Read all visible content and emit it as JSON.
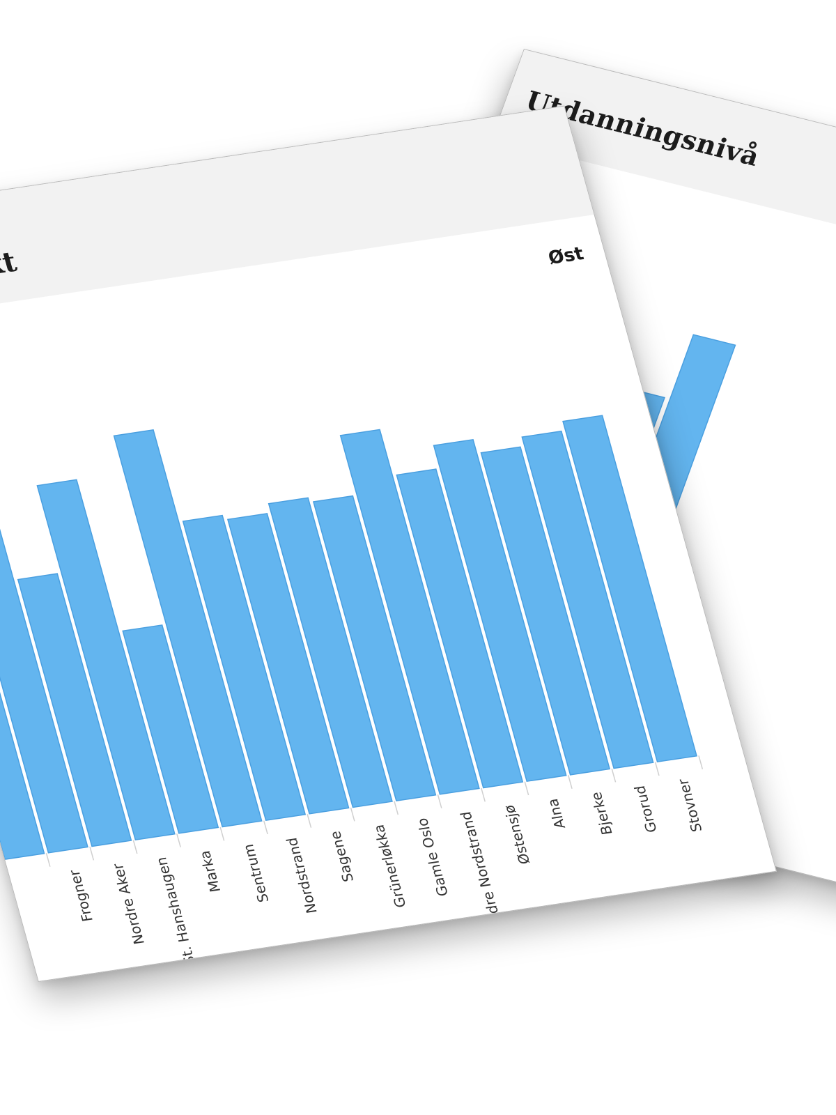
{
  "cards": {
    "income": {
      "title": "ntekt",
      "region_label": "Øst"
    },
    "education": {
      "title": "Utdanningsnivå"
    }
  },
  "colors": {
    "bar": "#63b5ef",
    "bar_edge": "#4a9fe0",
    "header_bg": "#f2f2f2",
    "tick": "#cfcfcf",
    "label": "#333333"
  },
  "chart_data": [
    {
      "type": "bar",
      "title": "ntekt",
      "subtitle": "Øst",
      "categories": [
        "",
        "Frogner",
        "Nordre Aker",
        "St. Hanshaugen",
        "Marka",
        "Sentrum",
        "Nordstrand",
        "Sagene",
        "Grünerløkka",
        "Gamle Oslo",
        "ndre Nordstrand",
        "Østensjø",
        "Alna",
        "Bjerke",
        "Grorud",
        "Stovner"
      ],
      "values": [
        73,
        70,
        58,
        77,
        44,
        85,
        65,
        64,
        66,
        65,
        78,
        68,
        73,
        70,
        72,
        74
      ],
      "ylim": [
        0,
        100
      ],
      "xlabel": "",
      "ylabel": "",
      "grid": false,
      "legend": "none"
    },
    {
      "type": "bar",
      "title": "Utdanningsnivå",
      "categories": [
        "",
        "Sentrum",
        "Nordstrand",
        "Sagene",
        "Grünerløkka",
        "Gamle Os"
      ],
      "values": [
        92,
        95,
        62,
        70,
        72,
        88
      ],
      "ylim": [
        0,
        100
      ],
      "xlabel": "",
      "ylabel": "",
      "grid": false,
      "legend": "none"
    }
  ]
}
